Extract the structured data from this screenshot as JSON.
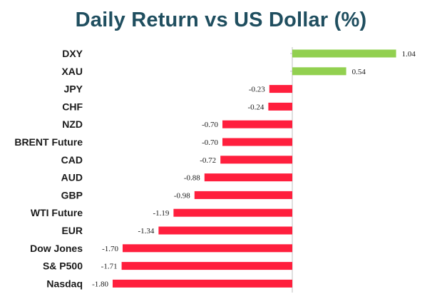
{
  "chart_data": {
    "type": "bar",
    "orientation": "horizontal",
    "title": "Daily Return vs US Dollar (%)",
    "categories": [
      "DXY",
      "XAU",
      "JPY",
      "CHF",
      "NZD",
      "BRENT Future",
      "CAD",
      "AUD",
      "GBP",
      "WTI Future",
      "EUR",
      "Dow Jones",
      "S& P500",
      "Nasdaq"
    ],
    "values": [
      1.04,
      0.54,
      -0.23,
      -0.24,
      -0.7,
      -0.7,
      -0.72,
      -0.88,
      -0.98,
      -1.19,
      -1.34,
      -1.7,
      -1.71,
      -1.8
    ],
    "value_labels": [
      "1.04",
      "0.54",
      "-0.23",
      "-0.24",
      "-0.70",
      "-0.70",
      "-0.72",
      "-0.88",
      "-0.98",
      "-1.19",
      "-1.34",
      "-1.70",
      "-1.71",
      "-1.80"
    ],
    "positive_color": "#92d050",
    "negative_color": "#ff1f3d",
    "title_color": "#1f4e5f",
    "axis_color": "#bfbfbf",
    "grid": false,
    "legend": false
  }
}
